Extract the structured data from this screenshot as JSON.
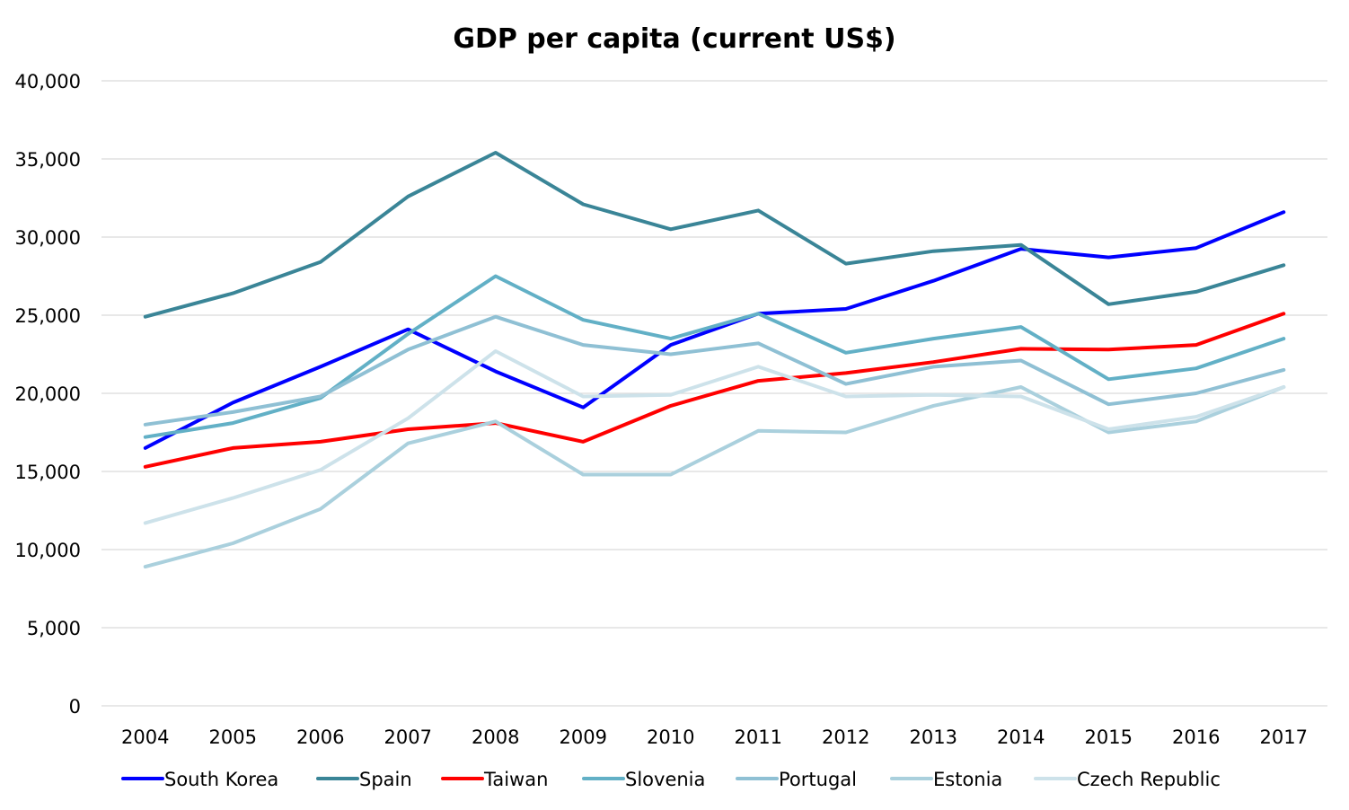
{
  "chart_data": {
    "type": "line",
    "title": "GDP per capita (current US$)",
    "xlabel": "",
    "ylabel": "",
    "ylim": [
      0,
      40000
    ],
    "y_ticks": [
      0,
      5000,
      10000,
      15000,
      20000,
      25000,
      30000,
      35000,
      40000
    ],
    "y_tick_labels": [
      "0",
      "5,000",
      "10,000",
      "15,000",
      "20,000",
      "25,000",
      "30,000",
      "35,000",
      "40,000"
    ],
    "categories": [
      "2004",
      "2005",
      "2006",
      "2007",
      "2008",
      "2009",
      "2010",
      "2011",
      "2012",
      "2013",
      "2014",
      "2015",
      "2016",
      "2017"
    ],
    "grid": true,
    "legend_position": "bottom",
    "series": [
      {
        "name": "South Korea",
        "color": "#0000ff",
        "values": [
          16500,
          19400,
          21700,
          24100,
          21400,
          19100,
          23100,
          25100,
          25400,
          27200,
          29250,
          28700,
          29300,
          31600
        ]
      },
      {
        "name": "Spain",
        "color": "#3a8597",
        "values": [
          24900,
          26400,
          28400,
          32600,
          35400,
          32100,
          30500,
          31700,
          28300,
          29100,
          29500,
          25700,
          26500,
          28200
        ]
      },
      {
        "name": "Taiwan",
        "color": "#ff0000",
        "values": [
          15300,
          16500,
          16900,
          17700,
          18100,
          16900,
          19200,
          20800,
          21300,
          22000,
          22850,
          22800,
          23100,
          25100
        ]
      },
      {
        "name": "Slovenia",
        "color": "#62b0c6",
        "values": [
          17200,
          18100,
          19700,
          23800,
          27500,
          24700,
          23500,
          25100,
          22600,
          23500,
          24250,
          20900,
          21600,
          23500
        ]
      },
      {
        "name": "Portugal",
        "color": "#8fc0d4",
        "values": [
          18000,
          18800,
          19800,
          22800,
          24900,
          23100,
          22500,
          23200,
          20600,
          21700,
          22100,
          19300,
          20000,
          21500
        ]
      },
      {
        "name": "Estonia",
        "color": "#aad0dd",
        "values": [
          8900,
          10400,
          12600,
          16800,
          18200,
          14800,
          14800,
          17600,
          17500,
          19200,
          20400,
          17500,
          18200,
          20400
        ]
      },
      {
        "name": "Czech Republic",
        "color": "#cde2ea",
        "values": [
          11700,
          13300,
          15100,
          18400,
          22700,
          19800,
          19900,
          21700,
          19800,
          19900,
          19800,
          17700,
          18500,
          20400
        ]
      }
    ]
  }
}
